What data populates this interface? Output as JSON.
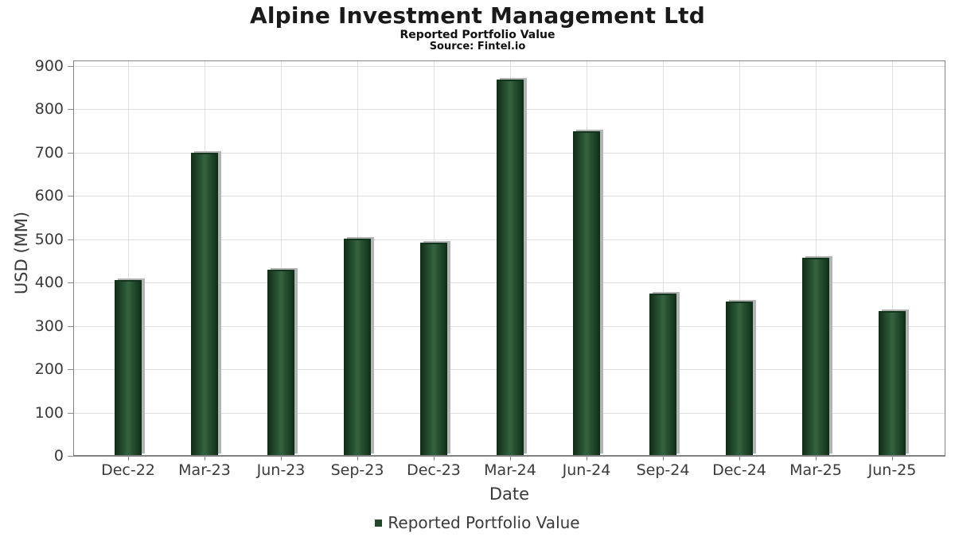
{
  "header": {
    "title": "Alpine Investment Management Ltd",
    "subtitle": "Reported Portfolio Value",
    "source": "Source: Fintel.io"
  },
  "legend": {
    "label": "Reported Portfolio Value"
  },
  "colors": {
    "bar_dark": "#0e2b16",
    "bar_mid": "#356442",
    "bar_cap": "#14341d",
    "bar_shadow": "#b4b4b4",
    "legend_marker": "#214728",
    "grid": "#dedede",
    "frame": "#828282",
    "tick": "#8a8a8a",
    "axis_text": "#3a3a3a"
  },
  "chart_data": {
    "type": "bar",
    "title": "Alpine Investment Management Ltd",
    "subtitle": "Reported Portfolio Value",
    "source": "Source: Fintel.io",
    "xlabel": "Date",
    "ylabel": "USD (MM)",
    "categories": [
      "Dec-22",
      "Mar-23",
      "Jun-23",
      "Sep-23",
      "Dec-23",
      "Mar-24",
      "Jun-24",
      "Sep-24",
      "Dec-24",
      "Mar-25",
      "Jun-25"
    ],
    "series": [
      {
        "name": "Reported Portfolio Value",
        "values": [
          403,
          698,
          427,
          500,
          491,
          866,
          747,
          372,
          354,
          456,
          333
        ]
      }
    ],
    "ylim": [
      0,
      900
    ],
    "ytick_step": 100,
    "grid": true,
    "legend_position": "bottom"
  }
}
